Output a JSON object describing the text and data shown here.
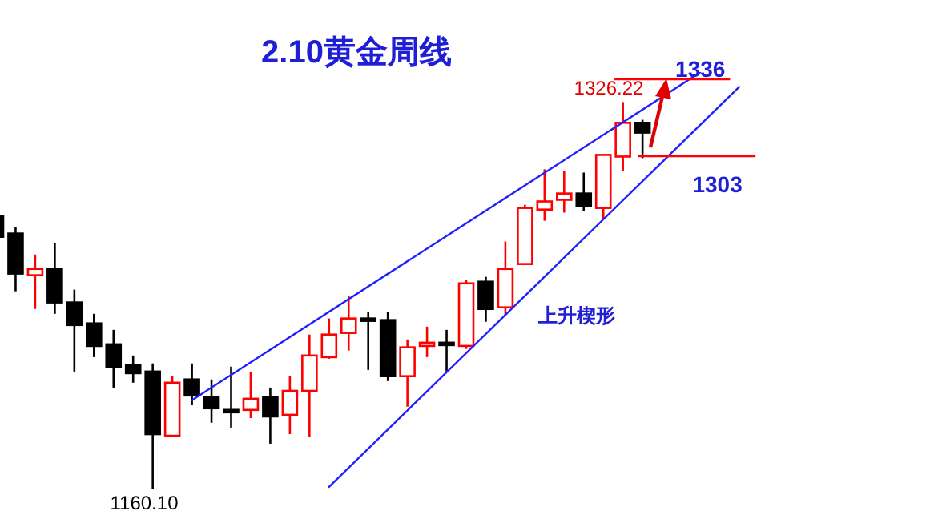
{
  "chart_data": {
    "type": "candlestick",
    "title": "2.10黄金周线",
    "categories": [
      null,
      null,
      null,
      null,
      null,
      null,
      null,
      null,
      null,
      null,
      null,
      null,
      null,
      null,
      null,
      null,
      null,
      null,
      null,
      null,
      null,
      null,
      null,
      null,
      null,
      null,
      null,
      null,
      null,
      null,
      null,
      null,
      null,
      null,
      null,
      null,
      null,
      null,
      null,
      null,
      null,
      null,
      null,
      null,
      null,
      null,
      null,
      null
    ],
    "ohlc": [
      [
        1277.3,
        1277.3,
        1266.9,
        1268.3
      ],
      [
        1269.7,
        1272.5,
        1244.9,
        1252.5
      ],
      [
        1251.8,
        1260.7,
        1237.3,
        1254.5
      ],
      [
        1254.5,
        1265.6,
        1235.2,
        1240.1
      ],
      [
        1240.1,
        1245.6,
        1210.4,
        1230.4
      ],
      [
        1231.1,
        1235.2,
        1216.6,
        1221.4
      ],
      [
        1222.1,
        1228.3,
        1203.5,
        1212.5
      ],
      [
        1213.2,
        1217.3,
        1205.6,
        1209.7
      ],
      [
        1210.4,
        1213.9,
        1160.1,
        1183.5
      ],
      [
        1182.8,
        1208.4,
        1182.2,
        1205.6
      ],
      [
        1207.0,
        1213.9,
        1195.9,
        1200.1
      ],
      [
        1199.4,
        1207.0,
        1188.4,
        1194.6
      ],
      [
        1193.9,
        1212.5,
        1186.3,
        1193.2
      ],
      [
        1193.9,
        1210.4,
        1190.4,
        1198.7
      ],
      [
        1199.4,
        1203.5,
        1179.4,
        1191.1
      ],
      [
        1191.8,
        1208.4,
        1183.5,
        1202.1
      ],
      [
        1202.1,
        1226.3,
        1182.2,
        1217.3
      ],
      [
        1216.6,
        1233.2,
        1215.9,
        1226.3
      ],
      [
        1227.0,
        1242.8,
        1219.4,
        1233.2
      ],
      [
        1233.2,
        1235.9,
        1211.1,
        1232.5
      ],
      [
        1232.5,
        1235.9,
        1206.3,
        1208.4
      ],
      [
        1208.4,
        1224.2,
        1195.3,
        1220.8
      ],
      [
        1221.4,
        1229.7,
        1216.6,
        1222.8
      ],
      [
        1222.8,
        1228.3,
        1210.4,
        1222.1
      ],
      [
        1221.4,
        1249.7,
        1220.1,
        1248.3
      ],
      [
        1249.0,
        1251.1,
        1231.8,
        1237.3
      ],
      [
        1238.0,
        1266.3,
        1234.5,
        1254.5
      ],
      [
        1256.6,
        1282.1,
        1256.6,
        1280.7
      ],
      [
        1280.0,
        1297.3,
        1275.2,
        1283.5
      ],
      [
        1284.2,
        1296.6,
        1278.7,
        1286.9
      ],
      [
        1286.9,
        1295.9,
        1279.3,
        1281.4
      ],
      [
        1280.7,
        1303.5,
        1275.9,
        1303.5
      ],
      [
        1302.8,
        1326.22,
        1296.6,
        1317.3
      ],
      [
        1317.3,
        1318.6,
        1302.1,
        1313.1
      ],
      null,
      null,
      null,
      null,
      null,
      null,
      null,
      null,
      null,
      null,
      null,
      null,
      null,
      null
    ],
    "colors": [
      "#000000",
      "#000000",
      "#ff0000",
      "#000000",
      "#000000",
      "#000000",
      "#000000",
      "#000000",
      "#000000",
      "#ff0000",
      "#000000",
      "#000000",
      "#000000",
      "#ff0000",
      "#000000",
      "#ff0000",
      "#ff0000",
      "#ff0000",
      "#ff0000",
      "#000000",
      "#000000",
      "#ff0000",
      "#ff0000",
      "#000000",
      "#ff0000",
      "#000000",
      "#ff0000",
      "#ff0000",
      "#ff0000",
      "#ff0000",
      "#000000",
      "#ff0000",
      "#ff0000",
      "#000000",
      null,
      null,
      null,
      null,
      null,
      null,
      null,
      null,
      null,
      null,
      null,
      null,
      null,
      null
    ],
    "series": [
      {
        "type": "line",
        "color": "#2020ff",
        "values": [
          null,
          null,
          null,
          null,
          null,
          null,
          null,
          null,
          null,
          null,
          1197.9,
          null,
          null,
          null,
          null,
          null,
          null,
          null,
          null,
          null,
          null,
          null,
          null,
          null,
          null,
          null,
          null,
          null,
          null,
          null,
          null,
          null,
          null,
          null,
          null,
          null,
          1339.1,
          null,
          null,
          null,
          null,
          null,
          null,
          null,
          null,
          null,
          null,
          null
        ]
      },
      {
        "type": "line",
        "color": "#2020ff",
        "values": [
          null,
          null,
          null,
          null,
          null,
          null,
          null,
          null,
          null,
          null,
          null,
          null,
          null,
          null,
          null,
          null,
          null,
          1160.6,
          null,
          null,
          null,
          null,
          null,
          null,
          null,
          null,
          null,
          null,
          null,
          null,
          null,
          null,
          null,
          null,
          null,
          null,
          null,
          null,
          1333.0,
          null,
          null,
          null,
          null,
          null,
          null,
          null,
          null,
          null
        ]
      }
    ],
    "ref_lines": [
      {
        "axis": "y",
        "value": 1336,
        "label": "1336",
        "color": "#ff0000"
      },
      {
        "axis": "y",
        "value": 1303,
        "label": "1303",
        "color": "#ff0000"
      }
    ],
    "annotations": [
      "上升楔形",
      "1326.22",
      "1160.10"
    ],
    "tick_labels": false,
    "grid": false,
    "legend": false
  }
}
